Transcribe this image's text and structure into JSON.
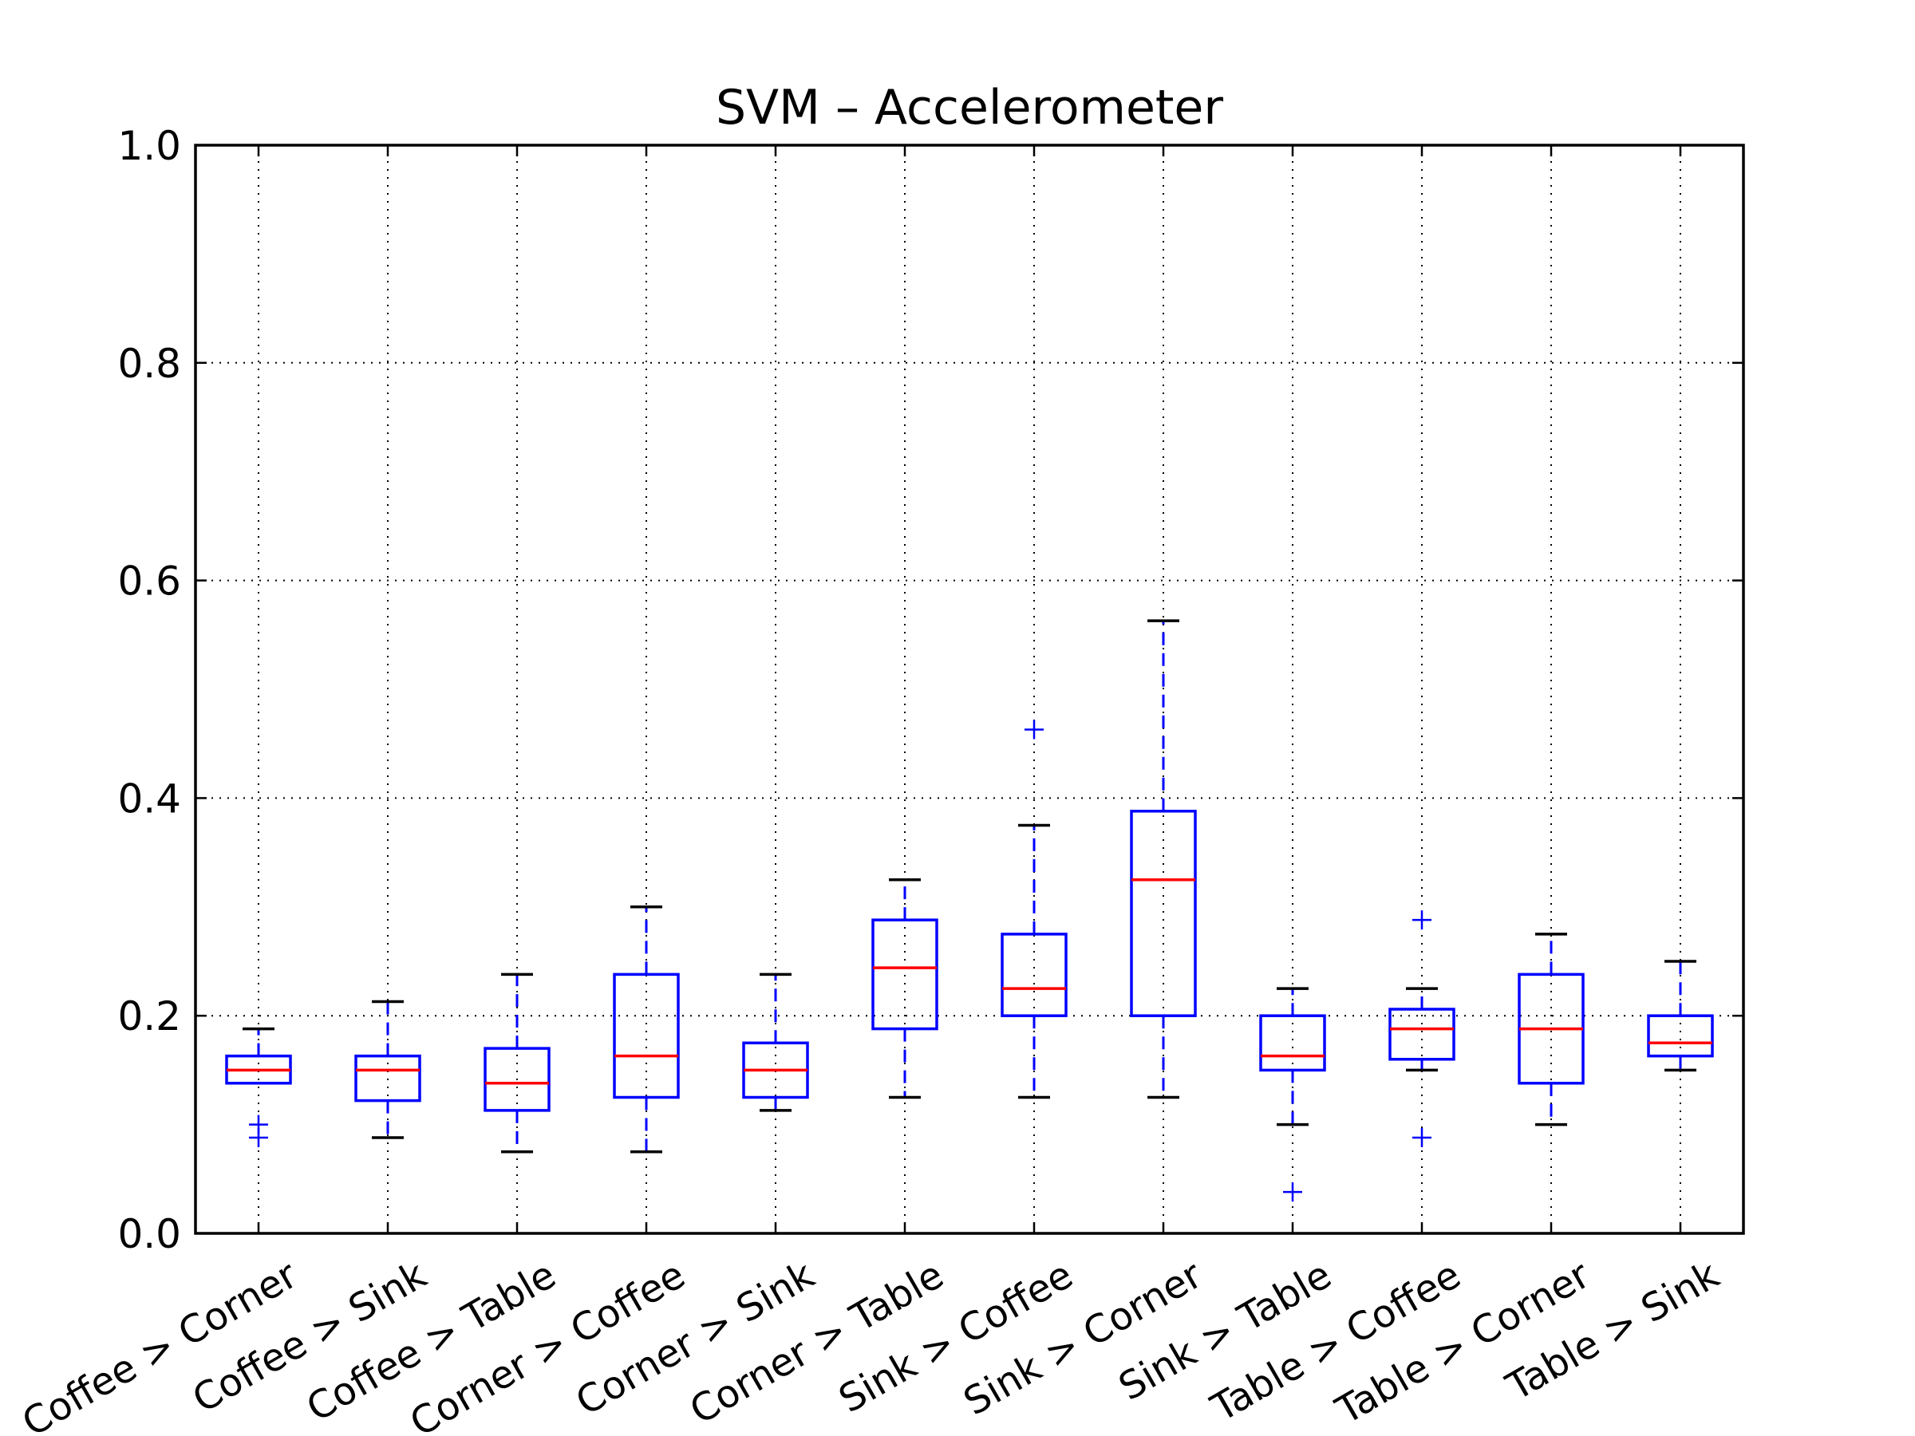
{
  "chart_data": {
    "type": "box",
    "title": "SVM – Accelerometer",
    "xlabel": "",
    "ylabel": "",
    "ylim": [
      0.0,
      1.0
    ],
    "yticks": [
      "0.0",
      "0.2",
      "0.4",
      "0.6",
      "0.8",
      "1.0"
    ],
    "grid": true,
    "categories": [
      "Coffee > Corner",
      "Coffee > Sink",
      "Coffee > Table",
      "Corner > Coffee",
      "Corner > Sink",
      "Corner > Table",
      "Sink > Coffee",
      "Sink > Corner",
      "Sink > Table",
      "Table > Coffee",
      "Table > Corner",
      "Table > Sink"
    ],
    "boxes": [
      {
        "whisker_low": 0.138,
        "q1": 0.138,
        "median": 0.15,
        "q3": 0.163,
        "whisker_high": 0.188,
        "outliers": [
          0.088,
          0.1
        ]
      },
      {
        "whisker_low": 0.088,
        "q1": 0.122,
        "median": 0.15,
        "q3": 0.163,
        "whisker_high": 0.213,
        "outliers": []
      },
      {
        "whisker_low": 0.075,
        "q1": 0.113,
        "median": 0.138,
        "q3": 0.17,
        "whisker_high": 0.238,
        "outliers": []
      },
      {
        "whisker_low": 0.075,
        "q1": 0.125,
        "median": 0.163,
        "q3": 0.238,
        "whisker_high": 0.3,
        "outliers": []
      },
      {
        "whisker_low": 0.113,
        "q1": 0.125,
        "median": 0.15,
        "q3": 0.175,
        "whisker_high": 0.238,
        "outliers": []
      },
      {
        "whisker_low": 0.125,
        "q1": 0.188,
        "median": 0.244,
        "q3": 0.288,
        "whisker_high": 0.325,
        "outliers": []
      },
      {
        "whisker_low": 0.125,
        "q1": 0.2,
        "median": 0.225,
        "q3": 0.275,
        "whisker_high": 0.375,
        "outliers": [
          0.463
        ]
      },
      {
        "whisker_low": 0.125,
        "q1": 0.2,
        "median": 0.325,
        "q3": 0.388,
        "whisker_high": 0.563,
        "outliers": []
      },
      {
        "whisker_low": 0.1,
        "q1": 0.15,
        "median": 0.163,
        "q3": 0.2,
        "whisker_high": 0.225,
        "outliers": [
          0.038
        ]
      },
      {
        "whisker_low": 0.15,
        "q1": 0.16,
        "median": 0.188,
        "q3": 0.206,
        "whisker_high": 0.225,
        "outliers": [
          0.088,
          0.288
        ]
      },
      {
        "whisker_low": 0.1,
        "q1": 0.138,
        "median": 0.188,
        "q3": 0.238,
        "whisker_high": 0.275,
        "outliers": []
      },
      {
        "whisker_low": 0.15,
        "q1": 0.163,
        "median": 0.175,
        "q3": 0.2,
        "whisker_high": 0.25,
        "outliers": []
      }
    ],
    "colors": {
      "box": "#0000ff",
      "median": "#ff0000",
      "whisker_cap": "#000000",
      "outlier": "#0000ff",
      "grid": "#000000",
      "axes": "#000000"
    }
  }
}
